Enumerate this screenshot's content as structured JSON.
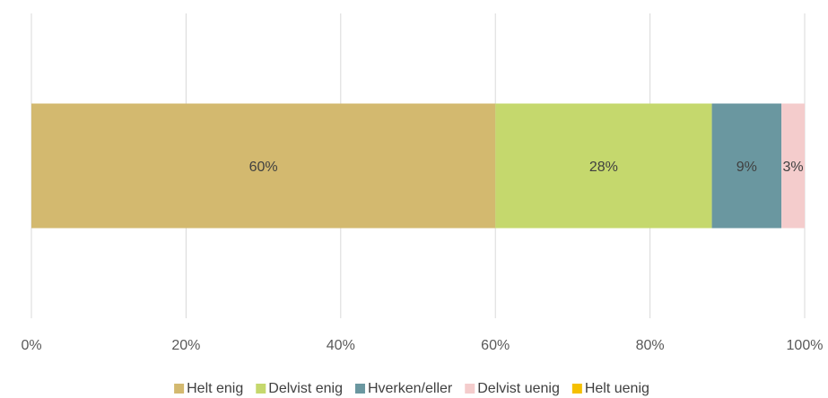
{
  "chart_data": {
    "type": "stacked-bar-horizontal",
    "categories": [
      null
    ],
    "series": [
      {
        "name": "Helt enig",
        "color": "#d3b96f",
        "values": [
          60
        ],
        "value_labels": [
          "60%"
        ]
      },
      {
        "name": "Delvist enig",
        "color": "#c5d86d",
        "values": [
          28
        ],
        "value_labels": [
          "28%"
        ]
      },
      {
        "name": "Hverken/eller",
        "color": "#6a97a0",
        "values": [
          9
        ],
        "value_labels": [
          "9%"
        ]
      },
      {
        "name": "Delvist uenig",
        "color": "#f4cccc",
        "values": [
          3
        ],
        "value_labels": [
          "3%"
        ]
      },
      {
        "name": "Helt uenig",
        "color": "#f5c000",
        "values": [
          0
        ]
      }
    ],
    "xlim": [
      0,
      100
    ],
    "xticks": [
      {
        "value": 0,
        "label": "0%"
      },
      {
        "value": 20,
        "label": "20%"
      },
      {
        "value": 40,
        "label": "40%"
      },
      {
        "value": 60,
        "label": "60%"
      },
      {
        "value": 80,
        "label": "80%"
      },
      {
        "value": 100,
        "label": "100%"
      }
    ],
    "grid": true,
    "legend": "bottom"
  }
}
